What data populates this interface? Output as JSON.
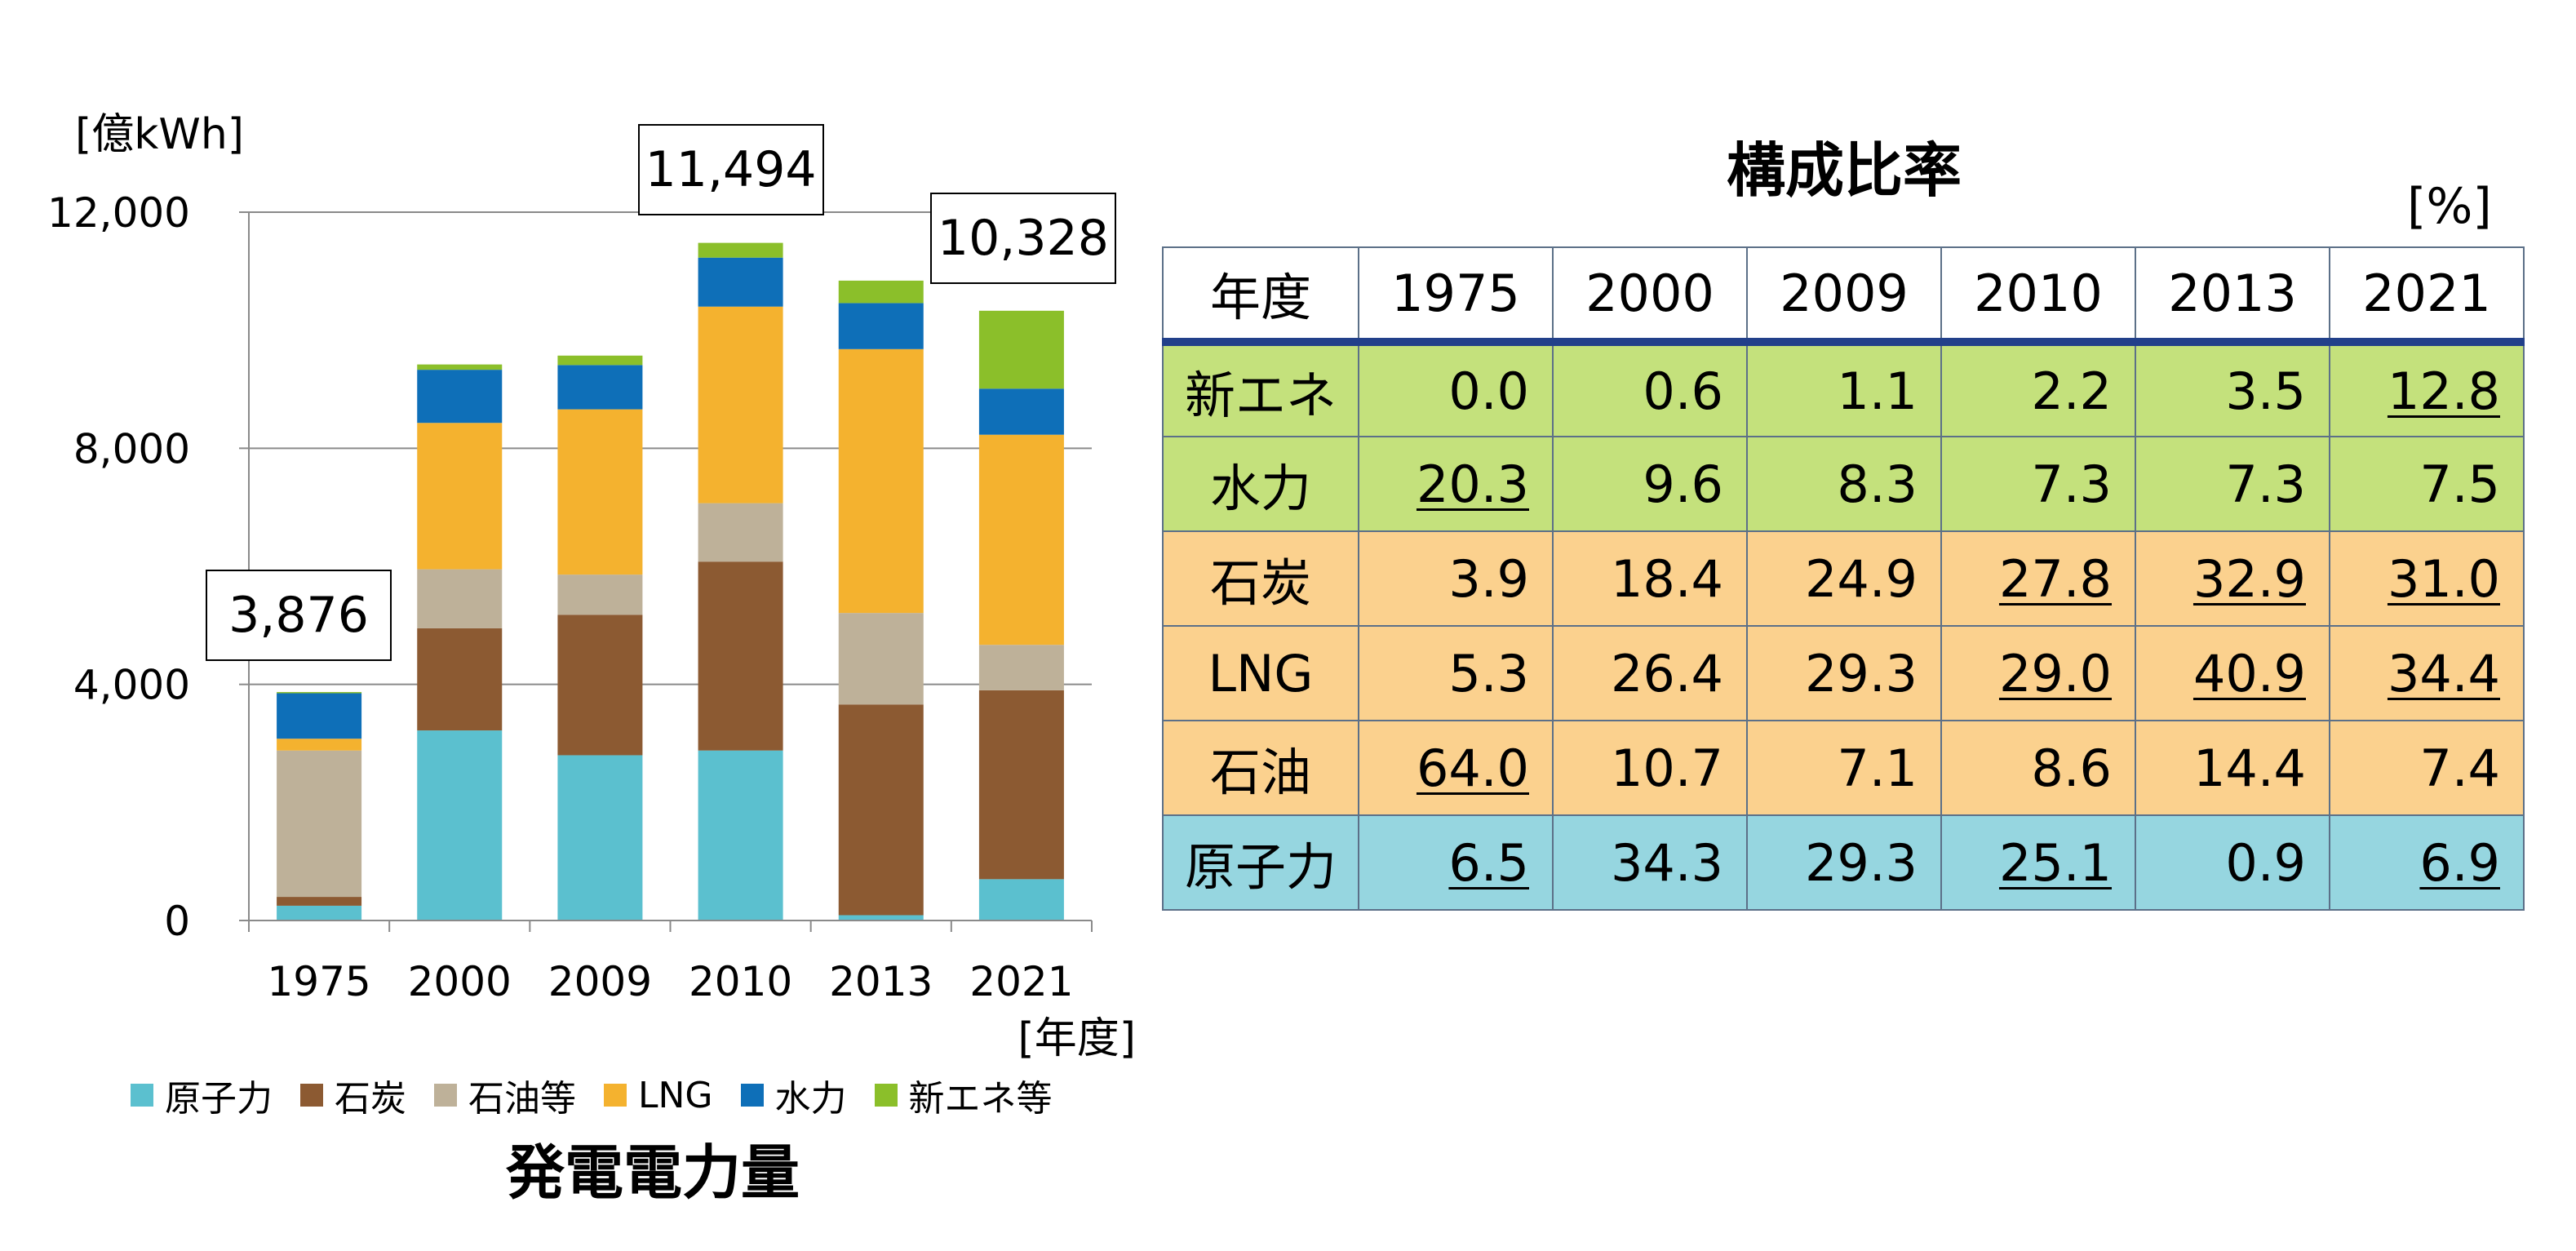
{
  "chart_data": {
    "type": "bar",
    "stacked": true,
    "title": "発電電力量",
    "ylabel": "[億kWh]",
    "xlabel": "[年度]",
    "ylim": [
      0,
      12000
    ],
    "yticks": [
      0,
      4000,
      8000,
      12000
    ],
    "ytick_labels": [
      "0",
      "4,000",
      "8,000",
      "12,000"
    ],
    "grid": true,
    "legend_position": "bottom",
    "categories": [
      "1975",
      "2000",
      "2009",
      "2010",
      "2013",
      "2021"
    ],
    "series": [
      {
        "name": "原子力",
        "color": "#5bc0cf",
        "values": [
          250,
          3220,
          2800,
          2880,
          90,
          700
        ]
      },
      {
        "name": "石炭",
        "color": "#8c5a32",
        "values": [
          150,
          1730,
          2380,
          3200,
          3570,
          3200
        ]
      },
      {
        "name": "石油等",
        "color": "#beb199",
        "values": [
          2480,
          1000,
          680,
          990,
          1550,
          770
        ]
      },
      {
        "name": "LNG",
        "color": "#f4b22f",
        "values": [
          200,
          2480,
          2800,
          3330,
          4470,
          3560
        ]
      },
      {
        "name": "水力",
        "color": "#0e6fb8",
        "values": [
          770,
          900,
          750,
          830,
          780,
          780
        ]
      },
      {
        "name": "新エネ等",
        "color": "#8bbf2a",
        "values": [
          20,
          90,
          160,
          250,
          380,
          1320
        ]
      }
    ],
    "annotations": [
      {
        "category": "1975",
        "label": "3,876"
      },
      {
        "category": "2010",
        "label": "11,494"
      },
      {
        "category": "2021",
        "label": "10,328"
      }
    ]
  },
  "table": {
    "title": "構成比率",
    "unit": "[%]",
    "header": [
      "年度",
      "1975",
      "2000",
      "2009",
      "2010",
      "2013",
      "2021"
    ],
    "rows": [
      {
        "label": "新エネ",
        "bg": "#c4e17c",
        "values": [
          "0.0",
          "0.6",
          "1.1",
          "2.2",
          "3.5",
          "12.8"
        ],
        "underline": [
          false,
          false,
          false,
          false,
          false,
          true
        ]
      },
      {
        "label": "水力",
        "bg": "#c4e17c",
        "values": [
          "20.3",
          "9.6",
          "8.3",
          "7.3",
          "7.3",
          "7.5"
        ],
        "underline": [
          true,
          false,
          false,
          false,
          false,
          false
        ]
      },
      {
        "label": "石炭",
        "bg": "#fbd18e",
        "values": [
          "3.9",
          "18.4",
          "24.9",
          "27.8",
          "32.9",
          "31.0"
        ],
        "underline": [
          false,
          false,
          false,
          true,
          true,
          true
        ]
      },
      {
        "label": "LNG",
        "bg": "#fbd18e",
        "values": [
          "5.3",
          "26.4",
          "29.3",
          "29.0",
          "40.9",
          "34.4"
        ],
        "underline": [
          false,
          false,
          false,
          true,
          true,
          true
        ]
      },
      {
        "label": "石油",
        "bg": "#fbd18e",
        "values": [
          "64.0",
          "10.7",
          "7.1",
          "8.6",
          "14.4",
          "7.4"
        ],
        "underline": [
          true,
          false,
          false,
          false,
          false,
          false
        ]
      },
      {
        "label": "原子力",
        "bg": "#96d6e0",
        "values": [
          "6.5",
          "34.3",
          "29.3",
          "25.1",
          "0.9",
          "6.9"
        ],
        "underline": [
          true,
          false,
          false,
          true,
          false,
          true
        ]
      }
    ]
  }
}
